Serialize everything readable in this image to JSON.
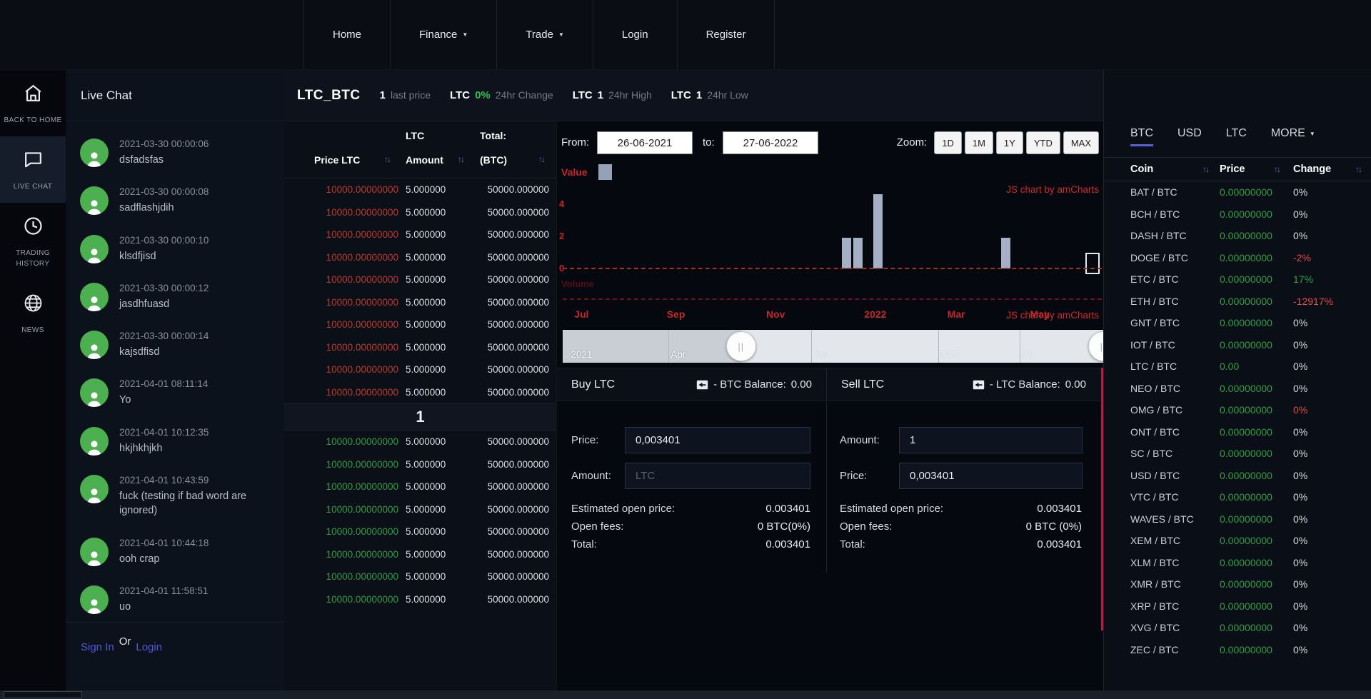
{
  "nav": {
    "items": [
      {
        "label": "Home",
        "caret": false
      },
      {
        "label": "Finance",
        "caret": true
      },
      {
        "label": "Trade",
        "caret": true
      },
      {
        "label": "Login",
        "caret": false
      },
      {
        "label": "Register",
        "caret": false
      }
    ]
  },
  "sidebar": {
    "items": [
      {
        "icon": "home-icon",
        "label": "BACK TO HOME",
        "active": false
      },
      {
        "icon": "chat-bubble-icon",
        "label": "LIVE CHAT",
        "active": true
      },
      {
        "icon": "clock-icon",
        "label": "TRADING HISTORY",
        "active": false
      },
      {
        "icon": "globe-icon",
        "label": "NEWS",
        "active": false
      }
    ]
  },
  "chat": {
    "title": "Live Chat",
    "messages": [
      {
        "time": "2021-03-30 00:00:06",
        "text": "dsfadsfas"
      },
      {
        "time": "2021-03-30 00:00:08",
        "text": "sadflashjdih"
      },
      {
        "time": "2021-03-30 00:00:10",
        "text": "klsdfjisd"
      },
      {
        "time": "2021-03-30 00:00:12",
        "text": "jasdhfuasd"
      },
      {
        "time": "2021-03-30 00:00:14",
        "text": "kajsdfisd"
      },
      {
        "time": "2021-04-01 08:11:14",
        "text": "Yo"
      },
      {
        "time": "2021-04-01 10:12:35",
        "text": "hkjhkhjkh"
      },
      {
        "time": "2021-04-01 10:43:59",
        "text": "fuck (testing if bad word are ignored)"
      },
      {
        "time": "2021-04-01 10:44:18",
        "text": "ooh crap"
      },
      {
        "time": "2021-04-01 11:58:51",
        "text": "uo"
      }
    ],
    "sign_in": "Sign In",
    "or": "Or",
    "login": "Login"
  },
  "ticker": {
    "pair": "LTC_BTC",
    "last_price": "1",
    "last_price_label": "last price",
    "change_coin": "LTC",
    "change_value": "0%",
    "change_label": "24hr Change",
    "high_coin": "LTC",
    "high_value": "1",
    "high_label": "24hr High",
    "low_coin": "LTC",
    "low_value": "1",
    "low_label": "24hr Low"
  },
  "orderbook": {
    "col1_header": "Price LTC",
    "col2_header_top": "LTC",
    "col2_header": "Amount",
    "col3_header_top": "Total:",
    "col3_header": "(BTC)",
    "last_price": "1",
    "sell_rows": [
      {
        "price": "10000.00000000",
        "amount": "5.000000",
        "total": "50000.000000"
      },
      {
        "price": "10000.00000000",
        "amount": "5.000000",
        "total": "50000.000000"
      },
      {
        "price": "10000.00000000",
        "amount": "5.000000",
        "total": "50000.000000"
      },
      {
        "price": "10000.00000000",
        "amount": "5.000000",
        "total": "50000.000000"
      },
      {
        "price": "10000.00000000",
        "amount": "5.000000",
        "total": "50000.000000"
      },
      {
        "price": "10000.00000000",
        "amount": "5.000000",
        "total": "50000.000000"
      },
      {
        "price": "10000.00000000",
        "amount": "5.000000",
        "total": "50000.000000"
      },
      {
        "price": "10000.00000000",
        "amount": "5.000000",
        "total": "50000.000000"
      },
      {
        "price": "10000.00000000",
        "amount": "5.000000",
        "total": "50000.000000"
      },
      {
        "price": "10000.00000000",
        "amount": "5.000000",
        "total": "50000.000000"
      }
    ],
    "buy_rows": [
      {
        "price": "10000.00000000",
        "amount": "5.000000",
        "total": "50000.000000"
      },
      {
        "price": "10000.00000000",
        "amount": "5.000000",
        "total": "50000.000000"
      },
      {
        "price": "10000.00000000",
        "amount": "5.000000",
        "total": "50000.000000"
      },
      {
        "price": "10000.00000000",
        "amount": "5.000000",
        "total": "50000.000000"
      },
      {
        "price": "10000.00000000",
        "amount": "5.000000",
        "total": "50000.000000"
      },
      {
        "price": "10000.00000000",
        "amount": "5.000000",
        "total": "50000.000000"
      },
      {
        "price": "10000.00000000",
        "amount": "5.000000",
        "total": "50000.000000"
      },
      {
        "price": "10000.00000000",
        "amount": "5.000000",
        "total": "50000.000000"
      }
    ]
  },
  "chart": {
    "from_label": "From:",
    "from_value": "26-06-2021",
    "to_label": "to:",
    "to_value": "27-06-2022",
    "zoom_label": "Zoom:",
    "zoom_buttons": [
      "1D",
      "1M",
      "1Y",
      "YTD",
      "MAX"
    ],
    "legend_label": "Value",
    "credits": "JS chart by amCharts",
    "volume_label": "Volume",
    "y_ticks": [
      "4",
      "2",
      "0"
    ],
    "x_labels": [
      "Jul",
      "Sep",
      "Nov",
      "2022",
      "Mar",
      "May"
    ],
    "scrollbar_labels": [
      "2021",
      "Apr",
      "Jul",
      "2022",
      "Apr"
    ],
    "pause_glyph": "||"
  },
  "chart_data": {
    "type": "bar",
    "title": "",
    "xlabel": "",
    "ylabel": "Value",
    "x_range": [
      "2021-06-26",
      "2022-06-27"
    ],
    "ylim": [
      0,
      5.6
    ],
    "x_axis_ticks": [
      "Jul",
      "Sep",
      "Nov",
      "2022",
      "Mar",
      "May"
    ],
    "grid": false,
    "legend_position": "top-left",
    "series": [
      {
        "name": "Value",
        "points": [
          {
            "x": "2021-12-18",
            "y": 1.9
          },
          {
            "x": "2021-12-26",
            "y": 1.9
          },
          {
            "x": "2022-01-08",
            "y": 4.6
          },
          {
            "x": "2022-04-05",
            "y": 1.9
          }
        ]
      }
    ]
  },
  "trade": {
    "buy": {
      "title": "Buy LTC",
      "balance_label": "- BTC Balance:",
      "balance_value": "0.00",
      "price_label": "Price:",
      "price_value": "0,003401",
      "amount_label": "Amount:",
      "amount_placeholder": "LTC",
      "est_label": "Estimated open price:",
      "est_value": "0.003401",
      "fees_label": "Open fees:",
      "fees_value": "0 BTC(0%)",
      "total_label": "Total:",
      "total_value": "0.003401"
    },
    "sell": {
      "title": "Sell LTC",
      "balance_label": "- LTC Balance:",
      "balance_value": "0.00",
      "amount_label": "Amount:",
      "amount_value": "1",
      "price_label": "Price:",
      "price_value": "0,003401",
      "est_label": "Estimated open price:",
      "est_value": "0.003401",
      "fees_label": "Open fees:",
      "fees_value": "0 BTC (0%)",
      "total_label": "Total:",
      "total_value": "0.003401"
    }
  },
  "market": {
    "tabs": [
      {
        "label": "BTC",
        "active": true,
        "caret": false
      },
      {
        "label": "USD",
        "active": false,
        "caret": false
      },
      {
        "label": "LTC",
        "active": false,
        "caret": false
      },
      {
        "label": "MORE",
        "active": false,
        "caret": true
      }
    ],
    "headers": [
      "Coin",
      "Price",
      "Change"
    ],
    "rows": [
      {
        "coin": "BAT / BTC",
        "price": "0.00000000",
        "change": "0%",
        "change_color": "white"
      },
      {
        "coin": "BCH / BTC",
        "price": "0.00000000",
        "change": "0%",
        "change_color": "white"
      },
      {
        "coin": "DASH / BTC",
        "price": "0.00000000",
        "change": "0%",
        "change_color": "white"
      },
      {
        "coin": "DOGE / BTC",
        "price": "0.00000000",
        "change": "-2%",
        "change_color": "red"
      },
      {
        "coin": "ETC / BTC",
        "price": "0.00000000",
        "change": "17%",
        "change_color": "green"
      },
      {
        "coin": "ETH / BTC",
        "price": "0.00000000",
        "change": "-12917%",
        "change_color": "red"
      },
      {
        "coin": "GNT / BTC",
        "price": "0.00000000",
        "change": "0%",
        "change_color": "white"
      },
      {
        "coin": "IOT / BTC",
        "price": "0.00000000",
        "change": "0%",
        "change_color": "white"
      },
      {
        "coin": "LTC / BTC",
        "price": "0.00",
        "change": "0%",
        "change_color": "white"
      },
      {
        "coin": "NEO / BTC",
        "price": "0.00000000",
        "change": "0%",
        "change_color": "white"
      },
      {
        "coin": "OMG / BTC",
        "price": "0.00000000",
        "change": "0%",
        "change_color": "red"
      },
      {
        "coin": "ONT / BTC",
        "price": "0.00000000",
        "change": "0%",
        "change_color": "white"
      },
      {
        "coin": "SC / BTC",
        "price": "0.00000000",
        "change": "0%",
        "change_color": "white"
      },
      {
        "coin": "USD / BTC",
        "price": "0.00000000",
        "change": "0%",
        "change_color": "white"
      },
      {
        "coin": "VTC / BTC",
        "price": "0.00000000",
        "change": "0%",
        "change_color": "white"
      },
      {
        "coin": "WAVES / BTC",
        "price": "0.00000000",
        "change": "0%",
        "change_color": "white"
      },
      {
        "coin": "XEM / BTC",
        "price": "0.00000000",
        "change": "0%",
        "change_color": "white"
      },
      {
        "coin": "XLM / BTC",
        "price": "0.00000000",
        "change": "0%",
        "change_color": "white"
      },
      {
        "coin": "XMR / BTC",
        "price": "0.00000000",
        "change": "0%",
        "change_color": "white"
      },
      {
        "coin": "XRP / BTC",
        "price": "0.00000000",
        "change": "0%",
        "change_color": "white"
      },
      {
        "coin": "XVG / BTC",
        "price": "0.00000000",
        "change": "0%",
        "change_color": "white"
      },
      {
        "coin": "ZEC / BTC",
        "price": "0.00000000",
        "change": "0%",
        "change_color": "white"
      }
    ]
  },
  "colors": {
    "accent_blue": "#5563d2",
    "link_blue": "#5058dd",
    "avatar_green": "#4caf50",
    "price_green": "#2ea047",
    "price_red": "#c0392f",
    "change_red": "#e04b4b",
    "chart_red": "#c5262c",
    "bar_fill": "#a6b0c4",
    "panel_red_border": "#c2143c"
  }
}
